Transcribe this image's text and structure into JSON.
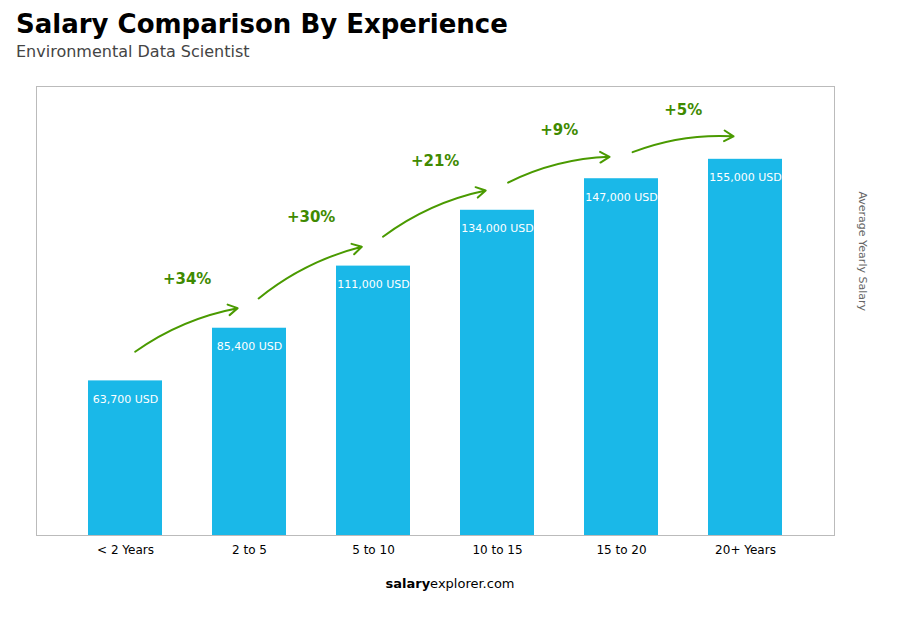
{
  "chart_data": {
    "type": "bar",
    "title": "Salary Comparison By Experience",
    "subtitle": "Environmental Data Scientist",
    "categories": [
      "< 2 Years",
      "2 to 5",
      "5 to 10",
      "10 to 15",
      "15 to 20",
      "20+ Years"
    ],
    "values": [
      63700,
      85400,
      111000,
      134000,
      147000,
      155000
    ],
    "value_labels": [
      "63,700 USD",
      "85,400 USD",
      "111,000 USD",
      "134,000 USD",
      "147,000 USD",
      "155,000 USD"
    ],
    "data_labels": true,
    "color": "#1ab8e8",
    "ylabel": "Average Yearly Salary",
    "ylim": [
      0,
      185000
    ],
    "tick_labels": "x",
    "grid": false,
    "annotations": [
      "+34%",
      "+30%",
      "+21%",
      "+9%",
      "+5%"
    ],
    "caption": [
      "salary",
      "explorer.com"
    ]
  }
}
